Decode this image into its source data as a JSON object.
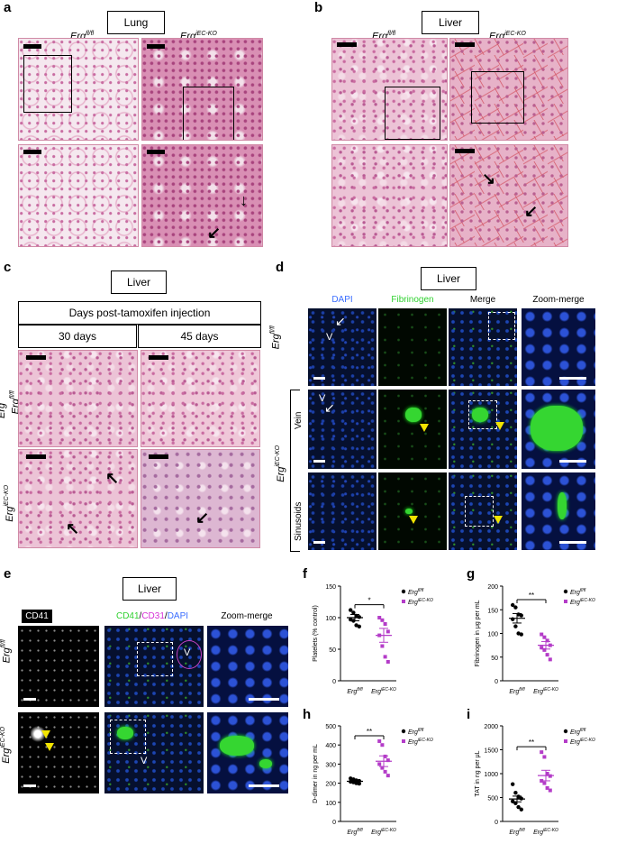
{
  "panel_a": {
    "label": "a",
    "tissue": "Lung",
    "genotype_ctrl": "Erg",
    "genotype_ctrl_sup": "fl/fl",
    "genotype_ko": "Erg",
    "genotype_ko_sup": "iEC-KO"
  },
  "panel_b": {
    "label": "b",
    "tissue": "Liver",
    "genotype_ctrl": "Erg",
    "genotype_ctrl_sup": "fl/fl",
    "genotype_ko": "Erg",
    "genotype_ko_sup": "iEC-KO"
  },
  "panel_c": {
    "label": "c",
    "tissue": "Liver",
    "header": "Days post-tamoxifen injection",
    "col1": "30 days",
    "col2": "45 days",
    "row_ctrl": "Erg",
    "row_ctrl_sup": "fl/fl",
    "row_ko": "Erg",
    "row_ko_sup": "iEC-KO"
  },
  "panel_d": {
    "label": "d",
    "tissue": "Liver",
    "columns": [
      "DAPI",
      "Fibrinogen",
      "Merge",
      "Zoom-merge"
    ],
    "row_ctrl": "Erg",
    "row_ctrl_sup": "fl/fl",
    "row_ko": "Erg",
    "row_ko_sup": "iEC-KO",
    "sub_vein": "Vein",
    "sub_sinusoids": "Sinusoids",
    "v_marker": "V",
    "colors": {
      "dapi": "#3a6dff",
      "fibrinogen": "#2fd12f"
    }
  },
  "panel_e": {
    "label": "e",
    "tissue": "Liver",
    "col_cd41": "CD41",
    "col_cd41_stain": "CD41",
    "col_cd31_stain": "CD31",
    "col_dapi_stain": "DAPI",
    "col_zoom": "Zoom-merge",
    "row_ctrl": "Erg",
    "row_ctrl_sup": "fl/fl",
    "row_ko": "Erg",
    "row_ko_sup": "iEC-KO",
    "v_marker": "V",
    "colors": {
      "cd41": "#2fd12f",
      "cd31": "#d62fd6",
      "dapi": "#3a6dff"
    }
  },
  "chart_data": [
    {
      "panel": "f",
      "type": "scatter",
      "ylabel": "Platelets (% control)",
      "ylim": [
        0,
        150
      ],
      "yticks": [
        0,
        50,
        100,
        150
      ],
      "categories": [
        "Erg fl/fl",
        "Erg iEC-KO"
      ],
      "significance": "*",
      "legend": [
        "Erg fl/fl",
        "Erg iEC-KO"
      ],
      "series": [
        {
          "name": "Erg fl/fl",
          "color": "#000000",
          "marker": "circle",
          "mean": 100,
          "sem": 5,
          "values": [
            112,
            108,
            103,
            101,
            97,
            95,
            88,
            86
          ]
        },
        {
          "name": "Erg iEC-KO",
          "color": "#b43cc8",
          "marker": "square",
          "mean": 72,
          "sem": 11,
          "values": [
            100,
            96,
            90,
            78,
            72,
            55,
            38,
            30
          ]
        }
      ]
    },
    {
      "panel": "g",
      "type": "scatter",
      "ylabel": "Fibrinogen in μg per mL",
      "ylim": [
        0,
        200
      ],
      "yticks": [
        0,
        50,
        100,
        150,
        200
      ],
      "categories": [
        "Erg fl/fl",
        "Erg iEC-KO"
      ],
      "significance": "**",
      "legend": [
        "Erg fl/fl",
        "Erg iEC-KO"
      ],
      "series": [
        {
          "name": "Erg fl/fl",
          "color": "#000000",
          "marker": "circle",
          "mean": 132,
          "sem": 10,
          "values": [
            160,
            155,
            140,
            138,
            130,
            115,
            100,
            98
          ]
        },
        {
          "name": "Erg iEC-KO",
          "color": "#b43cc8",
          "marker": "square",
          "mean": 75,
          "sem": 8,
          "values": [
            98,
            92,
            85,
            75,
            70,
            65,
            55,
            45
          ]
        }
      ]
    },
    {
      "panel": "h",
      "type": "scatter",
      "ylabel": "D-dimer in ng per mL",
      "ylim": [
        0,
        500
      ],
      "yticks": [
        0,
        100,
        200,
        300,
        400,
        500
      ],
      "categories": [
        "Erg fl/fl",
        "Erg iEC-KO"
      ],
      "significance": "**",
      "legend": [
        "Erg fl/fl",
        "Erg iEC-KO"
      ],
      "series": [
        {
          "name": "Erg fl/fl",
          "color": "#000000",
          "marker": "circle",
          "mean": 210,
          "sem": 5,
          "values": [
            225,
            220,
            215,
            212,
            208,
            205,
            200,
            198
          ]
        },
        {
          "name": "Erg iEC-KO",
          "color": "#b43cc8",
          "marker": "square",
          "mean": 315,
          "sem": 28,
          "values": [
            420,
            400,
            340,
            320,
            300,
            280,
            260,
            240
          ]
        }
      ]
    },
    {
      "panel": "i",
      "type": "scatter",
      "ylabel": "TAT in ng per μL",
      "ylim": [
        0,
        2000
      ],
      "yticks": [
        0,
        500,
        1000,
        1500,
        2000
      ],
      "categories": [
        "Erg fl/fl",
        "Erg iEC-KO"
      ],
      "significance": "**",
      "legend": [
        "Erg fl/fl",
        "Erg iEC-KO"
      ],
      "series": [
        {
          "name": "Erg fl/fl",
          "color": "#000000",
          "marker": "circle",
          "mean": 470,
          "sem": 60,
          "values": [
            780,
            600,
            520,
            480,
            420,
            380,
            300,
            250
          ]
        },
        {
          "name": "Erg iEC-KO",
          "color": "#b43cc8",
          "marker": "square",
          "mean": 960,
          "sem": 110,
          "values": [
            1450,
            1350,
            1000,
            950,
            850,
            800,
            700,
            650
          ]
        }
      ]
    }
  ]
}
